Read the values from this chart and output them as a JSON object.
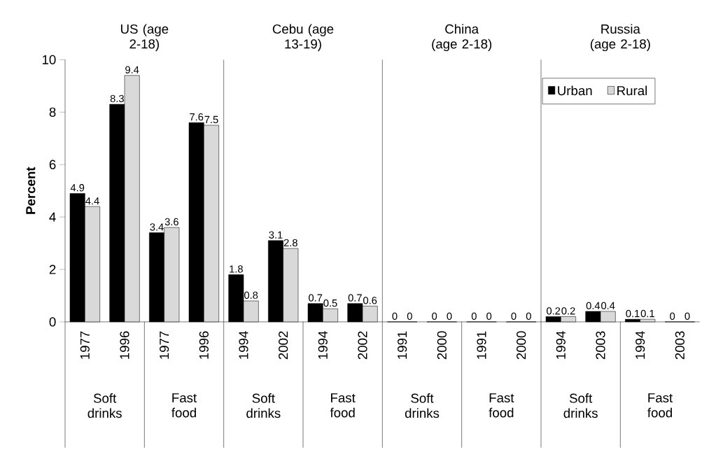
{
  "chart_data": {
    "type": "bar",
    "ylabel": "Percent",
    "categories": [
      "1977",
      "1996",
      "1977",
      "1996",
      "1994",
      "2002",
      "1994",
      "2002",
      "1991",
      "2000",
      "1991",
      "2000",
      "1994",
      "2003",
      "1994",
      "2003"
    ],
    "series": [
      {
        "name": "Urban",
        "color": "#000000",
        "values": [
          4.9,
          8.3,
          3.4,
          7.6,
          1.8,
          3.1,
          0.7,
          0.7,
          0,
          0,
          0,
          0,
          0.2,
          0.4,
          0.1,
          0
        ]
      },
      {
        "name": "Rural",
        "color": "#d9d9d9",
        "values": [
          4.4,
          9.4,
          3.6,
          7.5,
          0.8,
          2.8,
          0.5,
          0.6,
          0,
          0,
          0,
          0,
          0.2,
          0.4,
          0.1,
          0
        ]
      }
    ],
    "ylim": [
      0,
      10
    ],
    "yticks": [
      0,
      2,
      4,
      6,
      8,
      10
    ],
    "data_labels": true,
    "legend": "top right",
    "grid": false,
    "annotations": [
      "US (age 2-18)",
      "Cebu (age 13-19)",
      "China (age 2-18)",
      "Russia (age 2-18)",
      "Soft drinks",
      "Fast food",
      "Soft drinks",
      "Fast food",
      "Soft drinks",
      "Fast food",
      "Soft drinks",
      "Fast food"
    ]
  }
}
